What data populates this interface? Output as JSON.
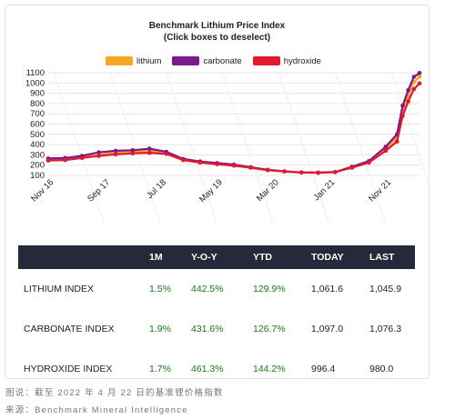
{
  "chart_data": {
    "type": "line",
    "title": "Benchmark Lithium Price Index",
    "subtitle": "(Click boxes to deselect)",
    "x_ticks": [
      "Nov 16",
      "Sep 17",
      "Jul 18",
      "May 19",
      "Mar 20",
      "Jan 21",
      "Nov 21"
    ],
    "y_ticks": [
      100,
      200,
      300,
      400,
      500,
      600,
      700,
      800,
      900,
      1000,
      1100
    ],
    "ylim": [
      100,
      1100
    ],
    "xlim": [
      "2016-10",
      "2022-04"
    ],
    "grid": true,
    "legend_position": "top",
    "series": [
      {
        "name": "lithium",
        "color": "#f5a623",
        "points": [
          [
            "2016-10",
            250
          ],
          [
            "2017-01",
            255
          ],
          [
            "2017-04",
            275
          ],
          [
            "2017-07",
            300
          ],
          [
            "2017-10",
            320
          ],
          [
            "2018-01",
            330
          ],
          [
            "2018-04",
            340
          ],
          [
            "2018-07",
            320
          ],
          [
            "2018-10",
            255
          ],
          [
            "2019-01",
            230
          ],
          [
            "2019-04",
            215
          ],
          [
            "2019-07",
            200
          ],
          [
            "2019-10",
            180
          ],
          [
            "2020-01",
            155
          ],
          [
            "2020-04",
            140
          ],
          [
            "2020-07",
            130
          ],
          [
            "2020-10",
            128
          ],
          [
            "2021-01",
            133
          ],
          [
            "2021-04",
            180
          ],
          [
            "2021-07",
            230
          ],
          [
            "2021-10",
            360
          ],
          [
            "2021-12",
            470
          ],
          [
            "2022-01",
            730
          ],
          [
            "2022-02",
            880
          ],
          [
            "2022-03",
            1010
          ],
          [
            "2022-04",
            1062
          ]
        ]
      },
      {
        "name": "carbonate",
        "color": "#7a1a8c",
        "points": [
          [
            "2016-10",
            265
          ],
          [
            "2017-01",
            270
          ],
          [
            "2017-04",
            290
          ],
          [
            "2017-07",
            325
          ],
          [
            "2017-10",
            340
          ],
          [
            "2018-01",
            345
          ],
          [
            "2018-04",
            360
          ],
          [
            "2018-07",
            330
          ],
          [
            "2018-10",
            260
          ],
          [
            "2019-01",
            235
          ],
          [
            "2019-04",
            220
          ],
          [
            "2019-07",
            205
          ],
          [
            "2019-10",
            180
          ],
          [
            "2020-01",
            155
          ],
          [
            "2020-04",
            140
          ],
          [
            "2020-07",
            128
          ],
          [
            "2020-10",
            126
          ],
          [
            "2021-01",
            132
          ],
          [
            "2021-04",
            185
          ],
          [
            "2021-07",
            240
          ],
          [
            "2021-10",
            380
          ],
          [
            "2021-12",
            500
          ],
          [
            "2022-01",
            780
          ],
          [
            "2022-02",
            930
          ],
          [
            "2022-03",
            1060
          ],
          [
            "2022-04",
            1097
          ]
        ]
      },
      {
        "name": "hydroxide",
        "color": "#e3182d",
        "points": [
          [
            "2016-10",
            245
          ],
          [
            "2017-01",
            250
          ],
          [
            "2017-04",
            270
          ],
          [
            "2017-07",
            290
          ],
          [
            "2017-10",
            305
          ],
          [
            "2018-01",
            315
          ],
          [
            "2018-04",
            320
          ],
          [
            "2018-07",
            310
          ],
          [
            "2018-10",
            250
          ],
          [
            "2019-01",
            225
          ],
          [
            "2019-04",
            210
          ],
          [
            "2019-07",
            195
          ],
          [
            "2019-10",
            175
          ],
          [
            "2020-01",
            150
          ],
          [
            "2020-04",
            138
          ],
          [
            "2020-07",
            128
          ],
          [
            "2020-10",
            127
          ],
          [
            "2021-01",
            134
          ],
          [
            "2021-04",
            175
          ],
          [
            "2021-07",
            225
          ],
          [
            "2021-10",
            340
          ],
          [
            "2021-12",
            430
          ],
          [
            "2022-01",
            680
          ],
          [
            "2022-02",
            820
          ],
          [
            "2022-03",
            940
          ],
          [
            "2022-04",
            996
          ]
        ]
      }
    ]
  },
  "table": {
    "headers": [
      "",
      "1M",
      "Y-O-Y",
      "YTD",
      "TODAY",
      "LAST"
    ],
    "rows": [
      {
        "name": "LITHIUM INDEX",
        "m1": "1.5%",
        "yoy": "442.5%",
        "ytd": "129.9%",
        "today": "1,061.6",
        "last": "1,045.9"
      },
      {
        "name": "CARBONATE INDEX",
        "m1": "1.9%",
        "yoy": "431.6%",
        "ytd": "126.7%",
        "today": "1,097.0",
        "last": "1,076.3"
      },
      {
        "name": "HYDROXIDE INDEX",
        "m1": "1.7%",
        "yoy": "461.3%",
        "ytd": "144.2%",
        "today": "996.4",
        "last": "980.0"
      }
    ]
  },
  "caption": {
    "line1": "图说：截至 2022 年 4 月 22 日的基准锂价格指数",
    "line2": "来源：Benchmark Mineral Intelligence"
  },
  "colors": {
    "header_bg": "#26293a",
    "positive": "#1a7a1a"
  }
}
